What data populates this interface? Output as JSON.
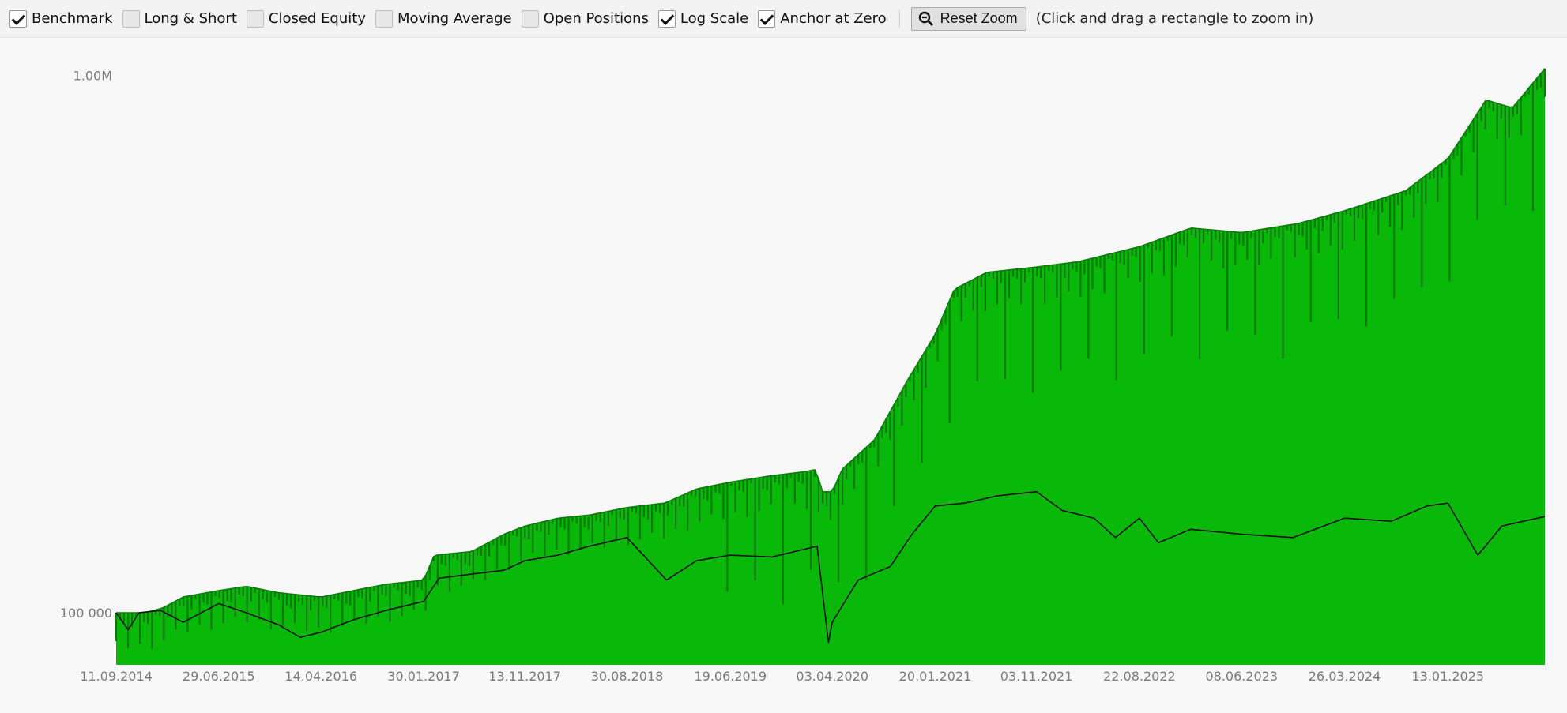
{
  "toolbar": {
    "checkboxes": [
      {
        "label": "Benchmark",
        "checked": true
      },
      {
        "label": "Long & Short",
        "checked": false
      },
      {
        "label": "Closed Equity",
        "checked": false
      },
      {
        "label": "Moving Average",
        "checked": false
      },
      {
        "label": "Open Positions",
        "checked": false
      },
      {
        "label": "Log Scale",
        "checked": true
      },
      {
        "label": "Anchor at Zero",
        "checked": true
      }
    ],
    "reset_zoom_label": "Reset Zoom",
    "reset_zoom_icon": "zoom-out-icon",
    "hint": "(Click and drag a rectangle to zoom in)"
  },
  "colors": {
    "equity_fill": "#0ab80a",
    "equity_dark": "#0a7a0a",
    "benchmark_line": "#111111",
    "tick_text": "#7a7a7a"
  },
  "chart_data": {
    "type": "area",
    "log_scale": true,
    "grid": false,
    "legend": "none",
    "title": "",
    "xlabel": "",
    "ylabel": "",
    "ylim": [
      80000,
      1050000
    ],
    "y_ticks": [
      {
        "value": 100000,
        "label": "100 000"
      },
      {
        "value": 1000000,
        "label": "1.00M"
      }
    ],
    "x_ticks": [
      {
        "date": "2014-09-11",
        "label": "11.09.2014"
      },
      {
        "date": "2015-06-29",
        "label": "29.06.2015"
      },
      {
        "date": "2016-04-14",
        "label": "14.04.2016"
      },
      {
        "date": "2017-01-30",
        "label": "30.01.2017"
      },
      {
        "date": "2017-11-13",
        "label": "13.11.2017"
      },
      {
        "date": "2018-08-30",
        "label": "30.08.2018"
      },
      {
        "date": "2019-06-19",
        "label": "19.06.2019"
      },
      {
        "date": "2020-04-03",
        "label": "03.04.2020"
      },
      {
        "date": "2021-01-20",
        "label": "20.01.2021"
      },
      {
        "date": "2021-11-03",
        "label": "03.11.2021"
      },
      {
        "date": "2022-08-22",
        "label": "22.08.2022"
      },
      {
        "date": "2023-06-08",
        "label": "08.06.2023"
      },
      {
        "date": "2024-03-26",
        "label": "26.03.2024"
      },
      {
        "date": "2025-01-13",
        "label": "13.01.2025"
      }
    ],
    "x_range": [
      "2014-09-11",
      "2025-10-15"
    ],
    "series": [
      {
        "name": "Equity",
        "type": "area",
        "points": [
          [
            "2014-09-11",
            100000
          ],
          [
            "2014-12-01",
            100000
          ],
          [
            "2015-01-20",
            102000
          ],
          [
            "2015-03-20",
            107000
          ],
          [
            "2015-06-29",
            110000
          ],
          [
            "2015-09-15",
            112000
          ],
          [
            "2015-12-15",
            109000
          ],
          [
            "2016-04-14",
            107000
          ],
          [
            "2016-07-15",
            110000
          ],
          [
            "2016-10-15",
            113000
          ],
          [
            "2017-01-30",
            115000
          ],
          [
            "2017-03-01",
            128000
          ],
          [
            "2017-06-15",
            130000
          ],
          [
            "2017-09-15",
            140000
          ],
          [
            "2017-11-13",
            145000
          ],
          [
            "2018-02-15",
            150000
          ],
          [
            "2018-05-15",
            152000
          ],
          [
            "2018-08-30",
            157000
          ],
          [
            "2018-12-15",
            160000
          ],
          [
            "2019-03-15",
            170000
          ],
          [
            "2019-06-19",
            175000
          ],
          [
            "2019-10-15",
            180000
          ],
          [
            "2020-01-15",
            183000
          ],
          [
            "2020-02-20",
            185000
          ],
          [
            "2020-03-01",
            168000
          ],
          [
            "2020-04-03",
            168000
          ],
          [
            "2020-05-01",
            185000
          ],
          [
            "2020-08-01",
            210000
          ],
          [
            "2020-11-01",
            270000
          ],
          [
            "2021-01-20",
            330000
          ],
          [
            "2021-03-15",
            400000
          ],
          [
            "2021-06-15",
            430000
          ],
          [
            "2021-11-03",
            440000
          ],
          [
            "2022-03-01",
            450000
          ],
          [
            "2022-08-22",
            480000
          ],
          [
            "2023-01-15",
            520000
          ],
          [
            "2023-06-08",
            510000
          ],
          [
            "2023-11-15",
            530000
          ],
          [
            "2024-03-26",
            560000
          ],
          [
            "2024-09-15",
            610000
          ],
          [
            "2025-01-13",
            700000
          ],
          [
            "2025-05-01",
            900000
          ],
          [
            "2025-07-15",
            870000
          ],
          [
            "2025-10-15",
            1030000
          ]
        ]
      },
      {
        "name": "Benchmark",
        "type": "line",
        "points": [
          [
            "2014-09-11",
            100000
          ],
          [
            "2014-10-15",
            93000
          ],
          [
            "2014-11-15",
            100000
          ],
          [
            "2015-01-15",
            101000
          ],
          [
            "2015-03-20",
            96000
          ],
          [
            "2015-06-29",
            104000
          ],
          [
            "2015-09-15",
            100000
          ],
          [
            "2015-12-15",
            95000
          ],
          [
            "2016-02-15",
            90000
          ],
          [
            "2016-04-14",
            92000
          ],
          [
            "2016-07-15",
            97000
          ],
          [
            "2016-10-15",
            101000
          ],
          [
            "2017-01-30",
            105000
          ],
          [
            "2017-03-15",
            116000
          ],
          [
            "2017-06-15",
            118000
          ],
          [
            "2017-09-15",
            120000
          ],
          [
            "2017-11-13",
            125000
          ],
          [
            "2018-02-15",
            128000
          ],
          [
            "2018-05-15",
            133000
          ],
          [
            "2018-08-30",
            138000
          ],
          [
            "2018-12-20",
            115000
          ],
          [
            "2019-03-15",
            125000
          ],
          [
            "2019-06-19",
            128000
          ],
          [
            "2019-10-15",
            127000
          ],
          [
            "2020-02-20",
            133000
          ],
          [
            "2020-03-23",
            88000
          ],
          [
            "2020-04-03",
            96000
          ],
          [
            "2020-06-15",
            115000
          ],
          [
            "2020-09-15",
            122000
          ],
          [
            "2020-11-15",
            140000
          ],
          [
            "2021-01-20",
            158000
          ],
          [
            "2021-04-15",
            160000
          ],
          [
            "2021-07-15",
            165000
          ],
          [
            "2021-11-03",
            168000
          ],
          [
            "2022-01-15",
            155000
          ],
          [
            "2022-04-15",
            150000
          ],
          [
            "2022-06-15",
            138000
          ],
          [
            "2022-08-22",
            150000
          ],
          [
            "2022-10-15",
            135000
          ],
          [
            "2023-01-15",
            143000
          ],
          [
            "2023-06-08",
            140000
          ],
          [
            "2023-11-01",
            138000
          ],
          [
            "2024-03-26",
            150000
          ],
          [
            "2024-08-05",
            148000
          ],
          [
            "2024-11-15",
            158000
          ],
          [
            "2025-01-13",
            160000
          ],
          [
            "2025-04-08",
            128000
          ],
          [
            "2025-06-15",
            145000
          ],
          [
            "2025-10-15",
            151000
          ]
        ]
      }
    ]
  }
}
